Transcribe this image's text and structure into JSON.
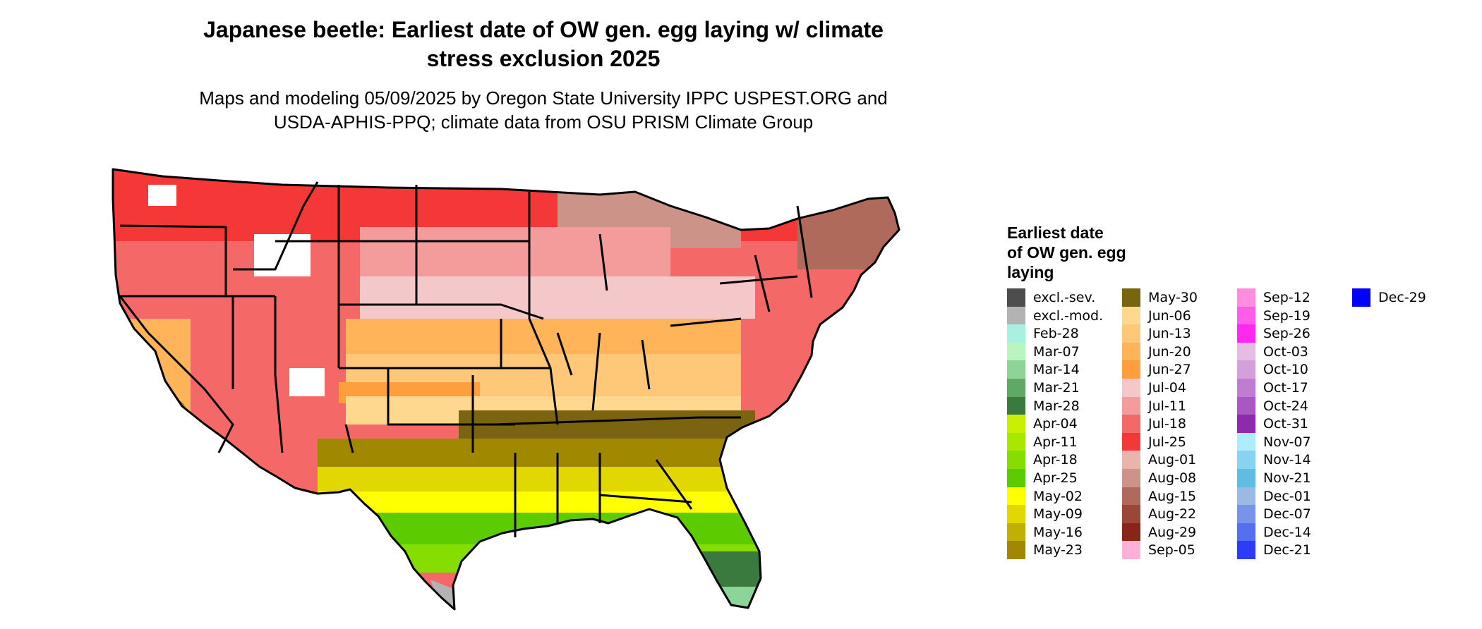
{
  "title_line1": "Japanese beetle: Earliest date of OW gen. egg laying w/ climate",
  "title_line2": "stress exclusion 2025",
  "subtitle_line1": "Maps and modeling 05/09/2025 by Oregon State University IPPC USPEST.ORG and",
  "subtitle_line2": "USDA-APHIS-PPQ; climate data from OSU PRISM Climate Group",
  "legend": {
    "title_line1": "Earliest date",
    "title_line2": "of OW gen. egg",
    "title_line3": "laying",
    "columns": [
      [
        {
          "label": "excl.-sev.",
          "color": "#4d4d4d"
        },
        {
          "label": "excl.-mod.",
          "color": "#b3b3b3"
        },
        {
          "label": "Feb-28",
          "color": "#a8f0e0"
        },
        {
          "label": "Mar-07",
          "color": "#b8f5c0"
        },
        {
          "label": "Mar-14",
          "color": "#8cd498"
        },
        {
          "label": "Mar-21",
          "color": "#5fa865"
        },
        {
          "label": "Mar-28",
          "color": "#3b7a3e"
        },
        {
          "label": "Apr-04",
          "color": "#c8f000"
        },
        {
          "label": "Apr-11",
          "color": "#a8e800"
        },
        {
          "label": "Apr-18",
          "color": "#86de00"
        },
        {
          "label": "Apr-25",
          "color": "#5ccc00"
        },
        {
          "label": "May-02",
          "color": "#ffff00"
        },
        {
          "label": "May-09",
          "color": "#e0d800"
        },
        {
          "label": "May-16",
          "color": "#c0b000"
        },
        {
          "label": "May-23",
          "color": "#a08800"
        }
      ],
      [
        {
          "label": "May-30",
          "color": "#7a6410"
        },
        {
          "label": "Jun-06",
          "color": "#ffd890"
        },
        {
          "label": "Jun-13",
          "color": "#ffc878"
        },
        {
          "label": "Jun-20",
          "color": "#ffb45a"
        },
        {
          "label": "Jun-27",
          "color": "#ff9e3c"
        },
        {
          "label": "Jul-04",
          "color": "#f4c8c8"
        },
        {
          "label": "Jul-11",
          "color": "#f49c9c"
        },
        {
          "label": "Jul-18",
          "color": "#f46868"
        },
        {
          "label": "Jul-25",
          "color": "#f43838"
        },
        {
          "label": "Aug-01",
          "color": "#e8b4ac"
        },
        {
          "label": "Aug-08",
          "color": "#cc9488"
        },
        {
          "label": "Aug-15",
          "color": "#b06a5c"
        },
        {
          "label": "Aug-22",
          "color": "#9a4638"
        },
        {
          "label": "Aug-29",
          "color": "#8a2418"
        },
        {
          "label": "Sep-05",
          "color": "#ffb0d8"
        }
      ],
      [
        {
          "label": "Sep-12",
          "color": "#ff8ce0"
        },
        {
          "label": "Sep-19",
          "color": "#ff5ce8"
        },
        {
          "label": "Sep-26",
          "color": "#ff28f0"
        },
        {
          "label": "Oct-03",
          "color": "#e4bce4"
        },
        {
          "label": "Oct-10",
          "color": "#d4a0dc"
        },
        {
          "label": "Oct-17",
          "color": "#c07cd0"
        },
        {
          "label": "Oct-24",
          "color": "#a858c0"
        },
        {
          "label": "Oct-31",
          "color": "#8c2cac"
        },
        {
          "label": "Nov-07",
          "color": "#b0ecff"
        },
        {
          "label": "Nov-14",
          "color": "#88d4f0"
        },
        {
          "label": "Nov-21",
          "color": "#60bce0"
        },
        {
          "label": "Dec-01",
          "color": "#9cb8e4"
        },
        {
          "label": "Dec-07",
          "color": "#7894e8"
        },
        {
          "label": "Dec-14",
          "color": "#5470f0"
        },
        {
          "label": "Dec-21",
          "color": "#2c3cf8"
        }
      ],
      [
        {
          "label": "Dec-29",
          "color": "#0000ff"
        }
      ]
    ]
  }
}
